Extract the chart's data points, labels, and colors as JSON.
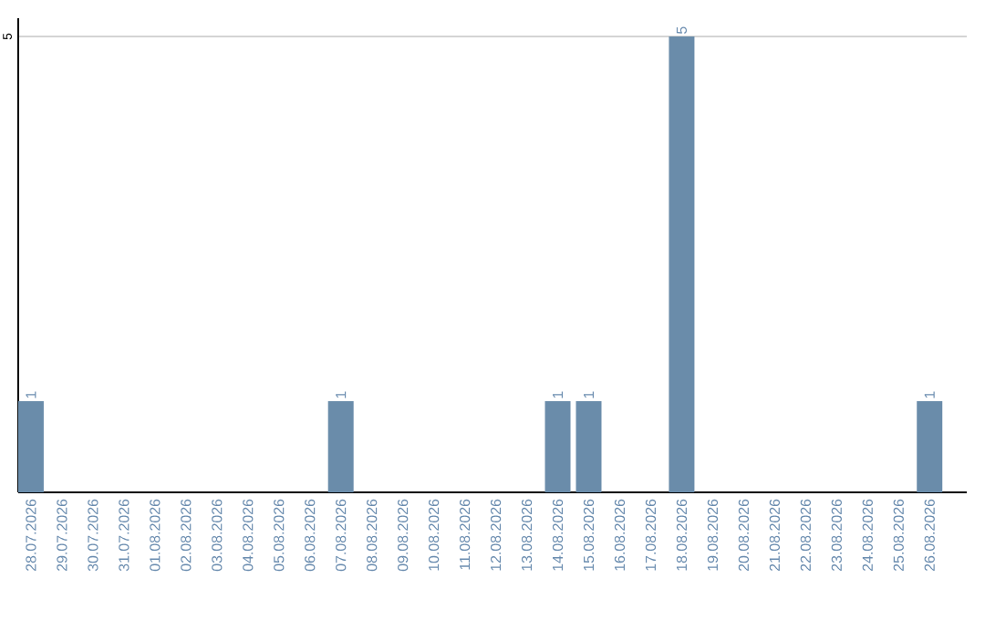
{
  "chart_data": {
    "type": "bar",
    "categories": [
      "28.07.2026",
      "29.07.2026",
      "30.07.2026",
      "31.07.2026",
      "01.08.2026",
      "02.08.2026",
      "03.08.2026",
      "04.08.2026",
      "05.08.2026",
      "06.08.2026",
      "07.08.2026",
      "08.08.2026",
      "09.08.2026",
      "10.08.2026",
      "11.08.2026",
      "12.08.2026",
      "13.08.2026",
      "14.08.2026",
      "15.08.2026",
      "16.08.2026",
      "17.08.2026",
      "18.08.2026",
      "19.08.2026",
      "20.08.2026",
      "21.08.2026",
      "22.08.2026",
      "23.08.2026",
      "24.08.2026",
      "25.08.2026",
      "26.08.2026"
    ],
    "values": [
      1,
      0,
      0,
      0,
      0,
      0,
      0,
      0,
      0,
      0,
      1,
      0,
      0,
      0,
      0,
      0,
      0,
      1,
      1,
      0,
      0,
      5,
      0,
      0,
      0,
      0,
      0,
      0,
      0,
      1
    ],
    "value_labels": [
      "1",
      null,
      null,
      null,
      null,
      null,
      null,
      null,
      null,
      null,
      "1",
      null,
      null,
      null,
      null,
      null,
      null,
      "1",
      "1",
      null,
      null,
      "5",
      null,
      null,
      null,
      null,
      null,
      null,
      null,
      "1"
    ],
    "color": "#6a8caa",
    "ylim": [
      0,
      5.2
    ],
    "yticks": [
      5
    ],
    "grid": "y"
  }
}
